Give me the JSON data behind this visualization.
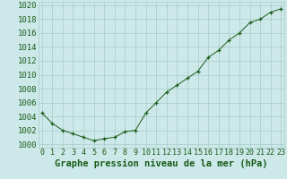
{
  "x": [
    0,
    1,
    2,
    3,
    4,
    5,
    6,
    7,
    8,
    9,
    10,
    11,
    12,
    13,
    14,
    15,
    16,
    17,
    18,
    19,
    20,
    21,
    22,
    23
  ],
  "y": [
    1004.5,
    1003.0,
    1002.0,
    1001.5,
    1001.0,
    1000.5,
    1000.8,
    1001.0,
    1001.8,
    1002.0,
    1004.5,
    1006.0,
    1007.5,
    1008.5,
    1009.5,
    1010.5,
    1012.5,
    1013.5,
    1015.0,
    1016.0,
    1017.5,
    1018.0,
    1019.0,
    1019.5
  ],
  "ylim": [
    999.5,
    1020.5
  ],
  "xlim": [
    -0.3,
    23.3
  ],
  "yticks": [
    1000,
    1002,
    1004,
    1006,
    1008,
    1010,
    1012,
    1014,
    1016,
    1018,
    1020
  ],
  "xticks": [
    0,
    1,
    2,
    3,
    4,
    5,
    6,
    7,
    8,
    9,
    10,
    11,
    12,
    13,
    14,
    15,
    16,
    17,
    18,
    19,
    20,
    21,
    22,
    23
  ],
  "xlabel": "Graphe pression niveau de la mer (hPa)",
  "line_color": "#1a5c1a",
  "marker": "+",
  "bg_color": "#cce8e8",
  "grid_color": "#aacccc",
  "tick_color": "#1a5c1a",
  "label_color": "#1a5c1a",
  "xlabel_fontsize": 7.5,
  "ytick_fontsize": 6.5,
  "xtick_fontsize": 6.0
}
